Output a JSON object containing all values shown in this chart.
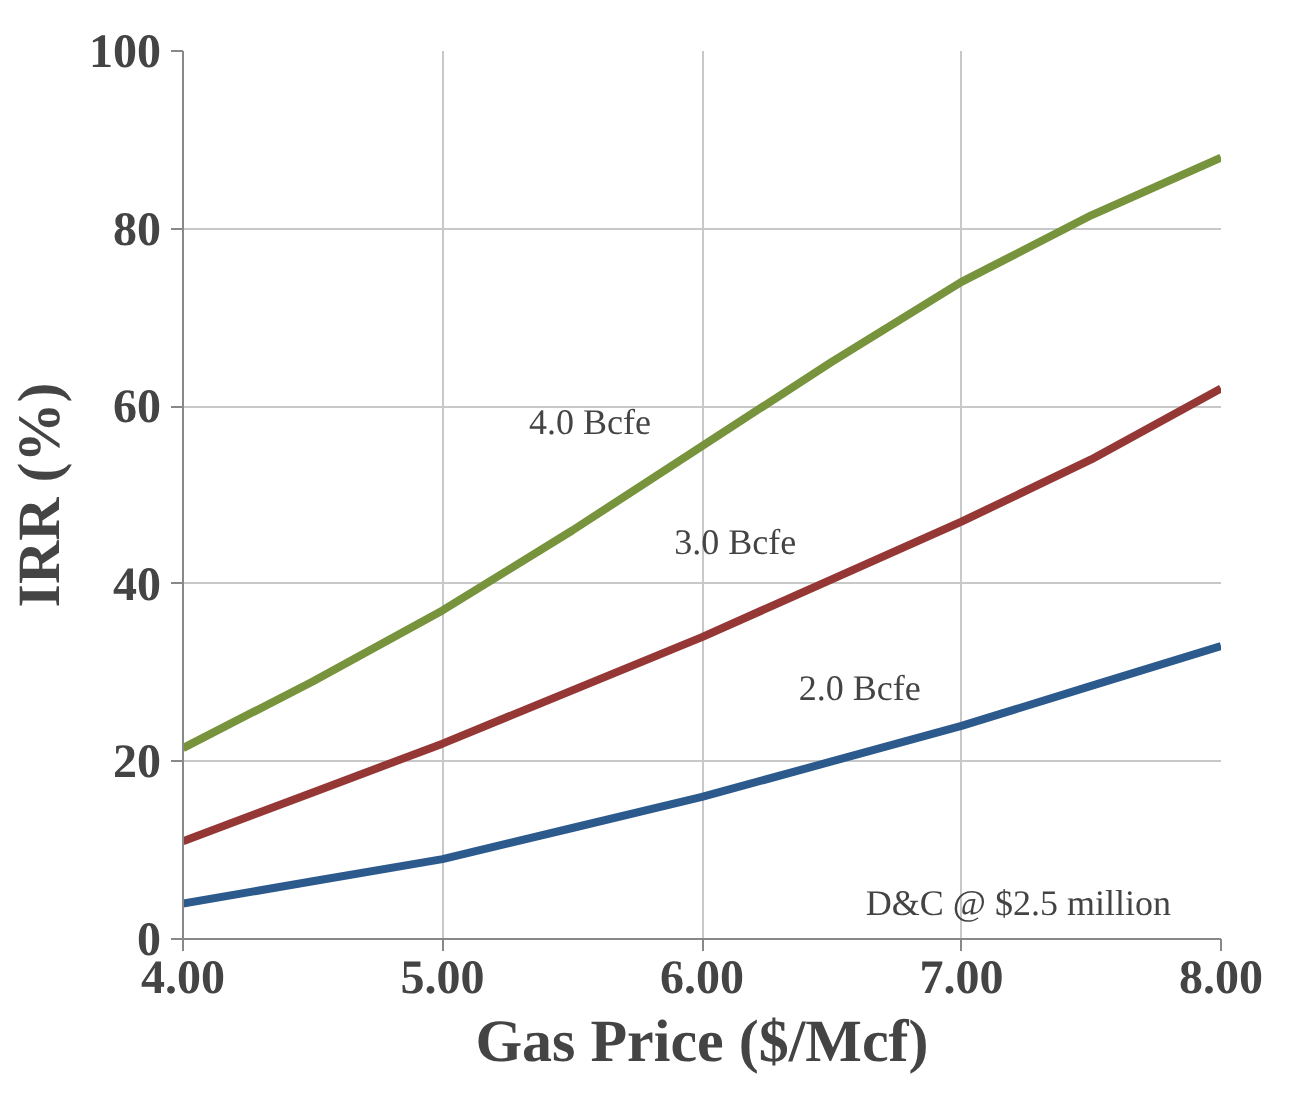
{
  "chart_data": {
    "type": "line",
    "xlabel": "Gas Price ($/Mcf)",
    "ylabel": "IRR (%)",
    "x": [
      4,
      4.5,
      5,
      5.5,
      6,
      6.5,
      7,
      7.5,
      8
    ],
    "series": [
      {
        "name": "4.0 Bcfe",
        "color": "#77933c",
        "values": [
          21.5,
          29,
          37,
          46,
          55.5,
          65,
          74,
          81.5,
          88
        ]
      },
      {
        "name": "3.0 Bcfe",
        "color": "#953735",
        "values": [
          11,
          16.5,
          22,
          28,
          34,
          40.5,
          47,
          54,
          62
        ]
      },
      {
        "name": "2.0 Bcfe",
        "color": "#2c5a8c",
        "values": [
          4,
          6.5,
          9,
          12.5,
          16,
          20,
          24,
          28.5,
          33
        ]
      }
    ],
    "xlim": [
      4,
      8
    ],
    "ylim": [
      0,
      100
    ],
    "xticks": [
      {
        "value": 4,
        "label": "4.00"
      },
      {
        "value": 5,
        "label": "5.00"
      },
      {
        "value": 6,
        "label": "6.00"
      },
      {
        "value": 7,
        "label": "7.00"
      },
      {
        "value": 8,
        "label": "8.00"
      }
    ],
    "yticks": [
      0,
      20,
      40,
      60,
      80,
      100
    ],
    "grid": true,
    "marker": "none",
    "line_style": "solid",
    "annotations": [
      "D&C @ $2.5 million"
    ]
  }
}
